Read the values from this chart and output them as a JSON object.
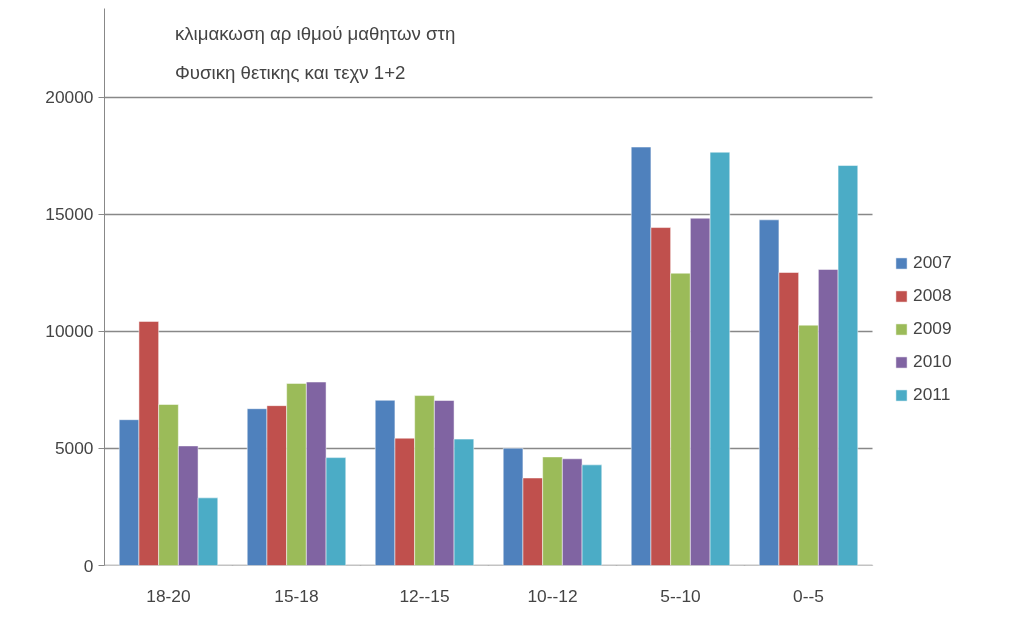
{
  "chart_data": {
    "type": "bar",
    "title": "κλιμακωση αρ ιθμού μαθητων στη\nΦυσικη θετικης και τεχν 1+2",
    "categories": [
      "18-20",
      "15-18",
      "12--15",
      "10--12",
      "5--10",
      "0--5"
    ],
    "series": [
      {
        "name": "2007",
        "color": "#4f81bd",
        "values": [
          6230,
          6700,
          7060,
          5010,
          17880,
          14770
        ]
      },
      {
        "name": "2008",
        "color": "#c0504d",
        "values": [
          10430,
          6830,
          5440,
          3740,
          14440,
          12520
        ]
      },
      {
        "name": "2009",
        "color": "#9bbb59",
        "values": [
          6880,
          7780,
          7260,
          4640,
          12490,
          10270
        ]
      },
      {
        "name": "2010",
        "color": "#8064a2",
        "values": [
          5110,
          7840,
          7050,
          4560,
          14840,
          12650
        ]
      },
      {
        "name": "2011",
        "color": "#4bacc6",
        "values": [
          2890,
          4610,
          5400,
          4300,
          17660,
          17090
        ]
      }
    ],
    "ylim": [
      0,
      23800
    ],
    "yticks": [
      0,
      5000,
      10000,
      15000,
      20000
    ],
    "grid": "y",
    "legend": "right"
  }
}
